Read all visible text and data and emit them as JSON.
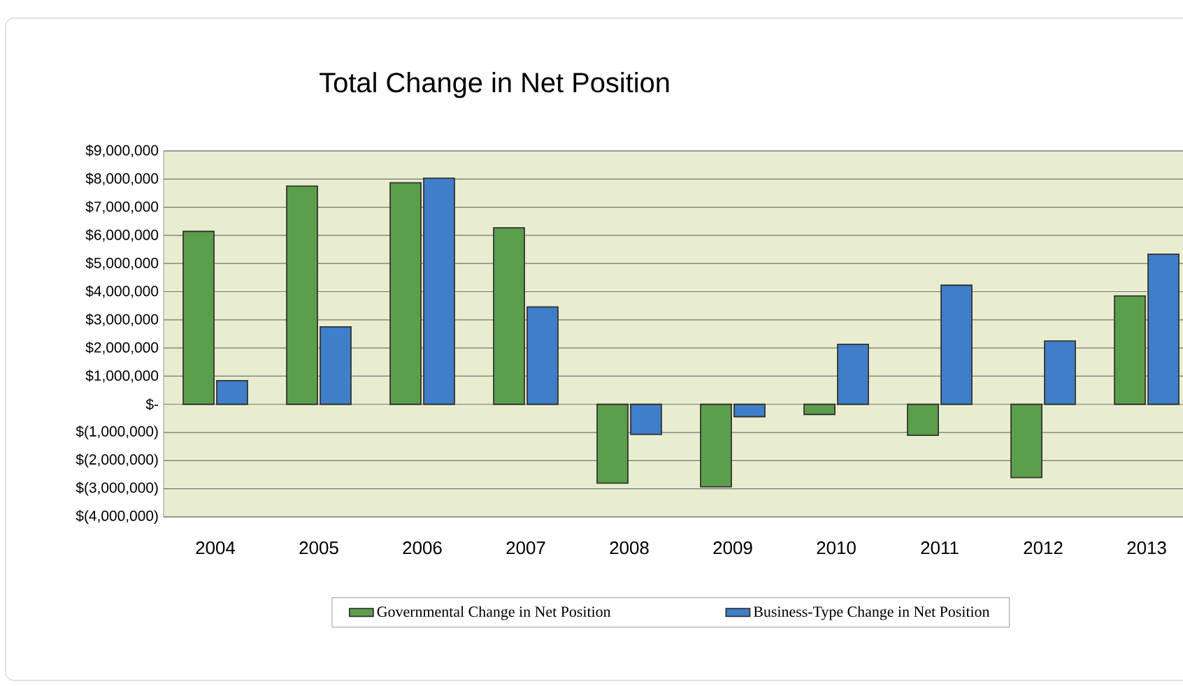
{
  "chart_data": {
    "type": "bar",
    "title": "Total Change in Net Position",
    "categories": [
      "2004",
      "2005",
      "2006",
      "2007",
      "2008",
      "2009",
      "2010",
      "2011",
      "2012",
      "2013"
    ],
    "series": [
      {
        "name": "Governmental Change in Net Position",
        "color": "#5b9e4b",
        "values": [
          6140000,
          7750000,
          7870000,
          6270000,
          -2800000,
          -2930000,
          -360000,
          -1100000,
          -2600000,
          3850000
        ]
      },
      {
        "name": "Business-Type Change in Net Position",
        "color": "#3f7ec8",
        "values": [
          840000,
          2750000,
          8030000,
          3460000,
          -1070000,
          -440000,
          2130000,
          4230000,
          2250000,
          5330000
        ]
      }
    ],
    "ylim": [
      -4000000,
      9000000
    ],
    "yticks": [
      {
        "value": -4000000,
        "label": "$(4,000,000)"
      },
      {
        "value": -3000000,
        "label": "$(3,000,000)"
      },
      {
        "value": -2000000,
        "label": "$(2,000,000)"
      },
      {
        "value": -1000000,
        "label": "$(1,000,000)"
      },
      {
        "value": 0,
        "label": "$-"
      },
      {
        "value": 1000000,
        "label": "$1,000,000"
      },
      {
        "value": 2000000,
        "label": "$2,000,000"
      },
      {
        "value": 3000000,
        "label": "$3,000,000"
      },
      {
        "value": 4000000,
        "label": "$4,000,000"
      },
      {
        "value": 5000000,
        "label": "$5,000,000"
      },
      {
        "value": 6000000,
        "label": "$6,000,000"
      },
      {
        "value": 7000000,
        "label": "$7,000,000"
      },
      {
        "value": 8000000,
        "label": "$8,000,000"
      },
      {
        "value": 9000000,
        "label": "$9,000,000"
      }
    ],
    "grid": "y",
    "legend": "bottom"
  }
}
